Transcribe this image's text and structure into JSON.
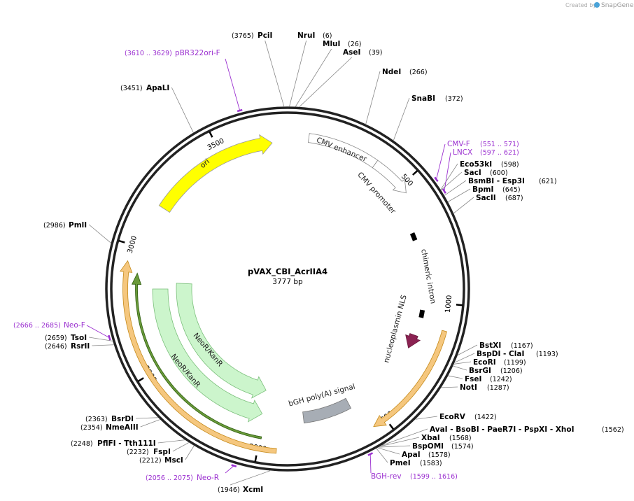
{
  "header": {
    "created_by": "Created by",
    "brand": "SnapGene"
  },
  "plasmid": {
    "name": "pVAX_CBI_AcrIIA4",
    "size": {
      "value": 3777,
      "label": "3777 bp"
    },
    "ticks": [
      500,
      1000,
      1500,
      2000,
      2500,
      3000,
      3500
    ]
  },
  "enzymes": [
    {
      "name": "PciI",
      "site": {
        "value": 3765,
        "label": "(3765)"
      }
    },
    {
      "name": "NruI",
      "site": {
        "value": 6,
        "label": "(6)"
      }
    },
    {
      "name": "MluI",
      "site": {
        "value": 26,
        "label": "(26)"
      }
    },
    {
      "name": "AseI",
      "site": {
        "value": 39,
        "label": "(39)"
      }
    },
    {
      "name": "NdeI",
      "site": {
        "value": 266,
        "label": "(266)"
      }
    },
    {
      "name": "SnaBI",
      "site": {
        "value": 372,
        "label": "(372)"
      }
    },
    {
      "name": "Eco53kI",
      "site": {
        "value": 598,
        "label": "(598)"
      }
    },
    {
      "name": "SacI",
      "site": {
        "value": 600,
        "label": "(600)"
      }
    },
    {
      "name": "BsmBI - Esp3I",
      "site": {
        "value": 621,
        "label": "(621)"
      }
    },
    {
      "name": "BpmI",
      "site": {
        "value": 645,
        "label": "(645)"
      }
    },
    {
      "name": "SacII",
      "site": {
        "value": 687,
        "label": "(687)"
      }
    },
    {
      "name": "BstXI",
      "site": {
        "value": 1167,
        "label": "(1167)"
      }
    },
    {
      "name": "BspDI - ClaI",
      "site": {
        "value": 1193,
        "label": "(1193)"
      }
    },
    {
      "name": "EcoRI",
      "site": {
        "value": 1199,
        "label": "(1199)"
      }
    },
    {
      "name": "BsrGI",
      "site": {
        "value": 1206,
        "label": "(1206)"
      }
    },
    {
      "name": "FseI",
      "site": {
        "value": 1242,
        "label": "(1242)"
      }
    },
    {
      "name": "NotI",
      "site": {
        "value": 1287,
        "label": "(1287)"
      }
    },
    {
      "name": "EcoRV",
      "site": {
        "value": 1422,
        "label": "(1422)"
      }
    },
    {
      "name": "AvaI - BsoBI - PaeR7I - PspXI - XhoI",
      "site": {
        "value": 1562,
        "label": "(1562)"
      }
    },
    {
      "name": "XbaI",
      "site": {
        "value": 1568,
        "label": "(1568)"
      }
    },
    {
      "name": "BspOMI",
      "site": {
        "value": 1574,
        "label": "(1574)"
      }
    },
    {
      "name": "ApaI",
      "site": {
        "value": 1578,
        "label": "(1578)"
      }
    },
    {
      "name": "PmeI",
      "site": {
        "value": 1583,
        "label": "(1583)"
      }
    },
    {
      "name": "XcmI",
      "site": {
        "value": 1946,
        "label": "(1946)"
      }
    },
    {
      "name": "MscI",
      "site": {
        "value": 2212,
        "label": "(2212)"
      }
    },
    {
      "name": "FspI",
      "site": {
        "value": 2232,
        "label": "(2232)"
      }
    },
    {
      "name": "PflFI - Tth111I",
      "site": {
        "value": 2248,
        "label": "(2248)"
      }
    },
    {
      "name": "NmeAIII",
      "site": {
        "value": 2354,
        "label": "(2354)"
      }
    },
    {
      "name": "BsrDI",
      "site": {
        "value": 2363,
        "label": "(2363)"
      }
    },
    {
      "name": "RsrII",
      "site": {
        "value": 2646,
        "label": "(2646)"
      }
    },
    {
      "name": "TsoI",
      "site": {
        "value": 2659,
        "label": "(2659)"
      }
    },
    {
      "name": "PmlI",
      "site": {
        "value": 2986,
        "label": "(2986)"
      }
    },
    {
      "name": "ApaLI",
      "site": {
        "value": 3451,
        "label": "(3451)"
      }
    }
  ],
  "primers": [
    {
      "name": "pBR322ori-F",
      "site": "(3610 .. 3629)"
    },
    {
      "name": "CMV-F",
      "site": "(551 .. 571)"
    },
    {
      "name": "LNCX",
      "site": "(597 .. 621)"
    },
    {
      "name": "Neo-F",
      "site": "(2666 .. 2685)"
    },
    {
      "name": "Neo-R",
      "site": "(2056 .. 2075)"
    },
    {
      "name": "BGH-rev",
      "site": "(1599 .. 1616)"
    }
  ],
  "features": [
    "ori",
    "CMV enhancer",
    "CMV promoter",
    "chimeric intron",
    "nucleoplasmin NLS",
    "bGH poly(A) signal",
    "NeoR/KanR",
    "NeoR/KanR"
  ]
}
